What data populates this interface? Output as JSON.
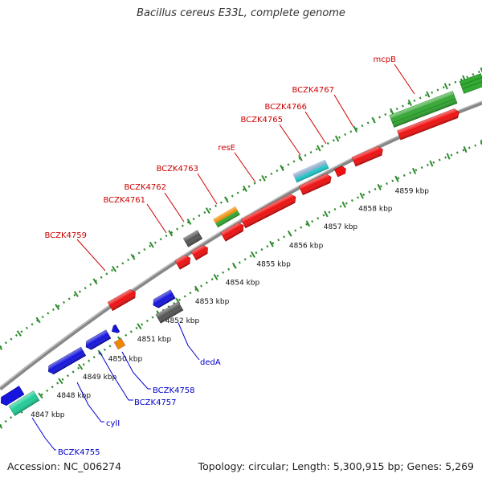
{
  "title": "Bacillus cereus E33L, complete genome",
  "footer": {
    "accession": "Accession: NC_006274",
    "summary": "Topology: circular; Length: 5,300,915 bp; Genes: 5,269"
  },
  "colors": {
    "backbone": "#999999",
    "ticks": "#2e8b2e",
    "top_label": "#cc0000",
    "bottom_label": "#0000cc"
  },
  "scale_labels": [
    "4847 kbp",
    "4848 kbp",
    "4849 kbp",
    "4850 kbp",
    "4851 kbp",
    "4852 kbp",
    "4853 kbp",
    "4854 kbp",
    "4855 kbp",
    "4856 kbp",
    "4857 kbp",
    "4858 kbp",
    "4859 kbp"
  ],
  "labels_top": [
    "BCZK4759",
    "BCZK4761",
    "BCZK4762",
    "BCZK4763",
    "resE",
    "BCZK4765",
    "BCZK4766",
    "BCZK4767",
    "mcpB"
  ],
  "labels_bottom": [
    "BCZK4755",
    "cylI",
    "BCZK4757",
    "BCZK4758",
    "dedA"
  ],
  "feature_colors": {
    "red": "#ee1111",
    "blue": "#1515dd",
    "gray": "#555555",
    "orange": "#ee8800",
    "green": "#33aa33",
    "teal": "#22cc99",
    "lightblue": "#88aacc",
    "cyan": "#22cccc"
  }
}
